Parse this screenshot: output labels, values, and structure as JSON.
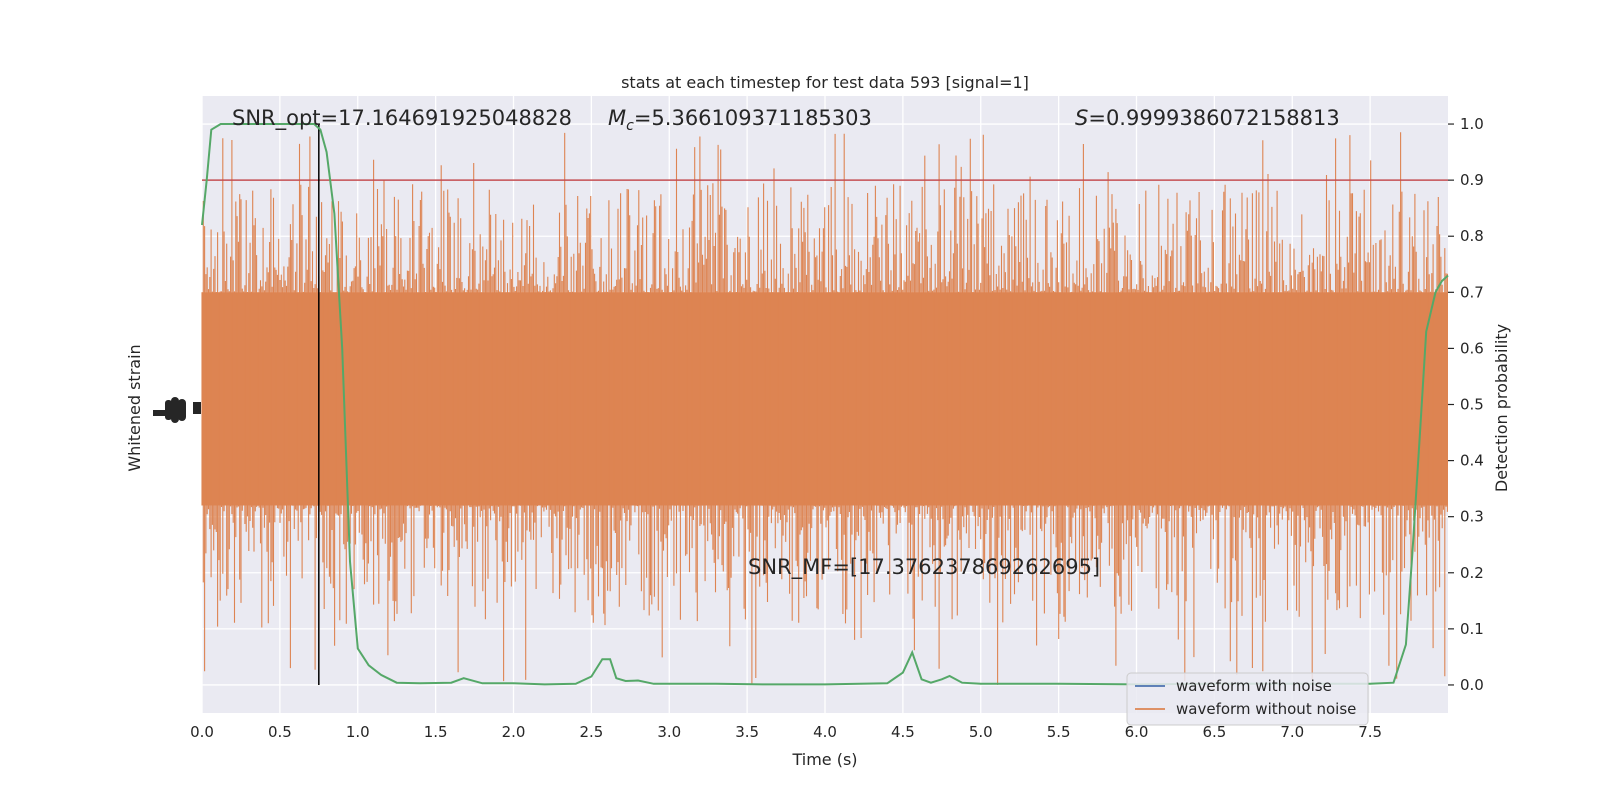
{
  "chart_data": {
    "type": "line",
    "title": "stats at each timestep for test data 593 [signal=1]",
    "xlabel": "Time (s)",
    "ylabel_left": "Whitened strain",
    "ylabel_right": "Detection probability",
    "xlim": [
      0.0,
      8.0
    ],
    "ylim_right": [
      -0.05,
      1.05
    ],
    "x_ticks": [
      "0.0",
      "0.5",
      "1.0",
      "1.5",
      "2.0",
      "2.5",
      "3.0",
      "3.5",
      "4.0",
      "4.5",
      "5.0",
      "5.5",
      "6.0",
      "6.5",
      "7.0",
      "7.5"
    ],
    "right_ticks": [
      "0.0",
      "0.1",
      "0.2",
      "0.3",
      "0.4",
      "0.5",
      "0.6",
      "0.7",
      "0.8",
      "0.9",
      "1.0"
    ],
    "grid": true,
    "annotations": {
      "snr_opt": "SNR_opt=17.164691925048828",
      "mc_symbol": "M",
      "mc_sub": "c",
      "mc_value": "=5.366109371185303",
      "s_symbol": "S",
      "s_value": "=0.9999386072158813",
      "snr_mf": "SNR_MF=[17.376237869262695]"
    },
    "threshold": 0.9,
    "marker_time": 0.75,
    "legend": {
      "placement": "lower-right",
      "entries": [
        {
          "label": "waveform with noise",
          "color": "#4c72b0"
        },
        {
          "label": "waveform without noise",
          "color": "#dd8452"
        }
      ]
    },
    "series": [
      {
        "name": "detection probability",
        "color": "#55a868",
        "x": [
          0.0,
          0.03,
          0.06,
          0.12,
          0.2,
          0.3,
          0.4,
          0.5,
          0.6,
          0.68,
          0.72,
          0.76,
          0.8,
          0.85,
          0.9,
          0.95,
          1.0,
          1.07,
          1.15,
          1.25,
          1.4,
          1.6,
          1.68,
          1.8,
          2.0,
          2.2,
          2.4,
          2.5,
          2.57,
          2.62,
          2.66,
          2.72,
          2.8,
          2.9,
          3.0,
          3.3,
          3.6,
          4.0,
          4.4,
          4.5,
          4.56,
          4.62,
          4.68,
          4.75,
          4.8,
          4.88,
          5.0,
          5.5,
          6.0,
          6.5,
          7.0,
          7.5,
          7.65,
          7.73,
          7.77,
          7.82,
          7.86,
          7.92,
          7.96,
          8.0
        ],
        "y": [
          0.82,
          0.9,
          0.99,
          1.0,
          1.0,
          1.0,
          1.0,
          1.0,
          1.0,
          1.0,
          1.0,
          0.99,
          0.95,
          0.84,
          0.6,
          0.22,
          0.065,
          0.035,
          0.018,
          0.004,
          0.003,
          0.004,
          0.012,
          0.003,
          0.003,
          0.001,
          0.002,
          0.015,
          0.046,
          0.046,
          0.012,
          0.007,
          0.008,
          0.002,
          0.002,
          0.002,
          0.001,
          0.001,
          0.003,
          0.022,
          0.058,
          0.01,
          0.004,
          0.01,
          0.016,
          0.004,
          0.002,
          0.002,
          0.001,
          0.002,
          0.002,
          0.002,
          0.004,
          0.072,
          0.23,
          0.45,
          0.63,
          0.7,
          0.72,
          0.73
        ]
      }
    ]
  }
}
